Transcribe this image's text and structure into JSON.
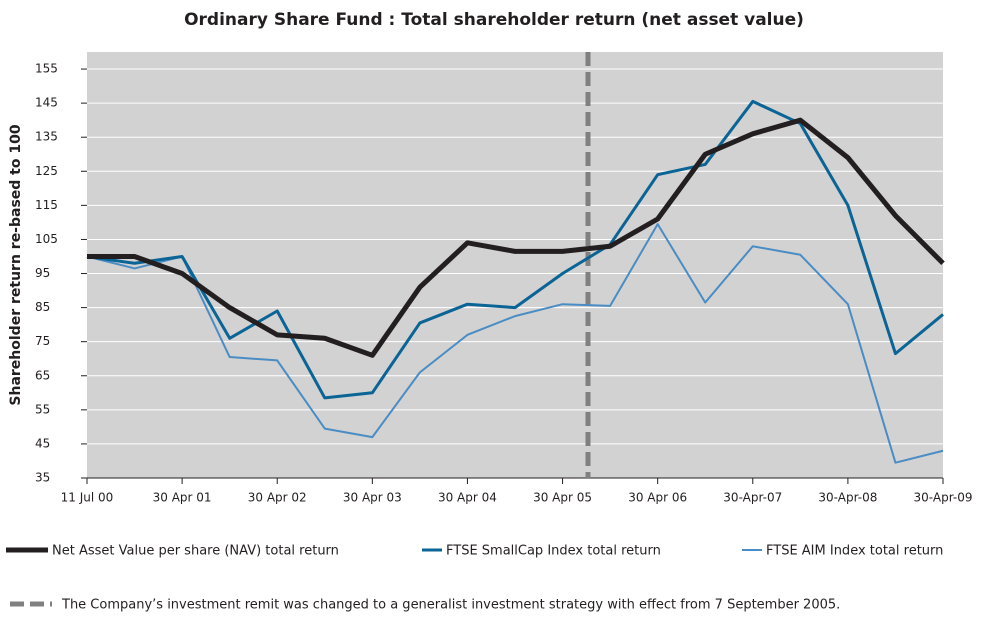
{
  "chart_data": {
    "type": "line",
    "title": "Ordinary Share Fund : Total shareholder return (net asset value)",
    "y_label": "Shareholder return re-based to 100",
    "categories": [
      "11 Jul 00",
      null,
      "30 Apr 01",
      null,
      "30 Apr 02",
      null,
      "30 Apr 03",
      null,
      "30 Apr 04",
      null,
      "30 Apr 05",
      null,
      "30 Apr 06",
      null,
      "30-Apr-07",
      null,
      "30-Apr-08",
      null,
      "30-Apr-09"
    ],
    "series": [
      {
        "name": "Net Asset Value per share (NAV) total return",
        "color": "#231f20",
        "values": [
          100,
          100,
          95,
          85,
          77,
          76,
          71,
          91,
          104,
          101.5,
          101.5,
          103,
          111,
          130,
          136,
          140,
          129,
          112,
          98
        ]
      },
      {
        "name": "FTSE SmallCap Index total return",
        "color": "#0a6496",
        "values": [
          100,
          98,
          100,
          76,
          84,
          58.5,
          60,
          80.5,
          86,
          85,
          95,
          103.5,
          124,
          127,
          145.5,
          139,
          115,
          71.5,
          83
        ]
      },
      {
        "name": "FTSE AIM Index total return",
        "color": "#4a8cc4",
        "values": [
          100,
          96.5,
          100,
          70.5,
          69.5,
          49.5,
          47,
          66,
          77,
          82.5,
          86,
          85.5,
          109.5,
          86.5,
          103,
          100.5,
          86,
          39.5,
          43
        ]
      }
    ],
    "annotation": "The Company’s investment remit was changed to a generalist investment strategy with effect from 7 September 2005.",
    "annotation_color": "#808080",
    "ylim": [
      35,
      160
    ],
    "yticks": [
      35,
      45,
      55,
      65,
      75,
      85,
      95,
      105,
      115,
      125,
      135,
      145,
      155
    ],
    "grid": true,
    "background": "#d2d2d2"
  }
}
